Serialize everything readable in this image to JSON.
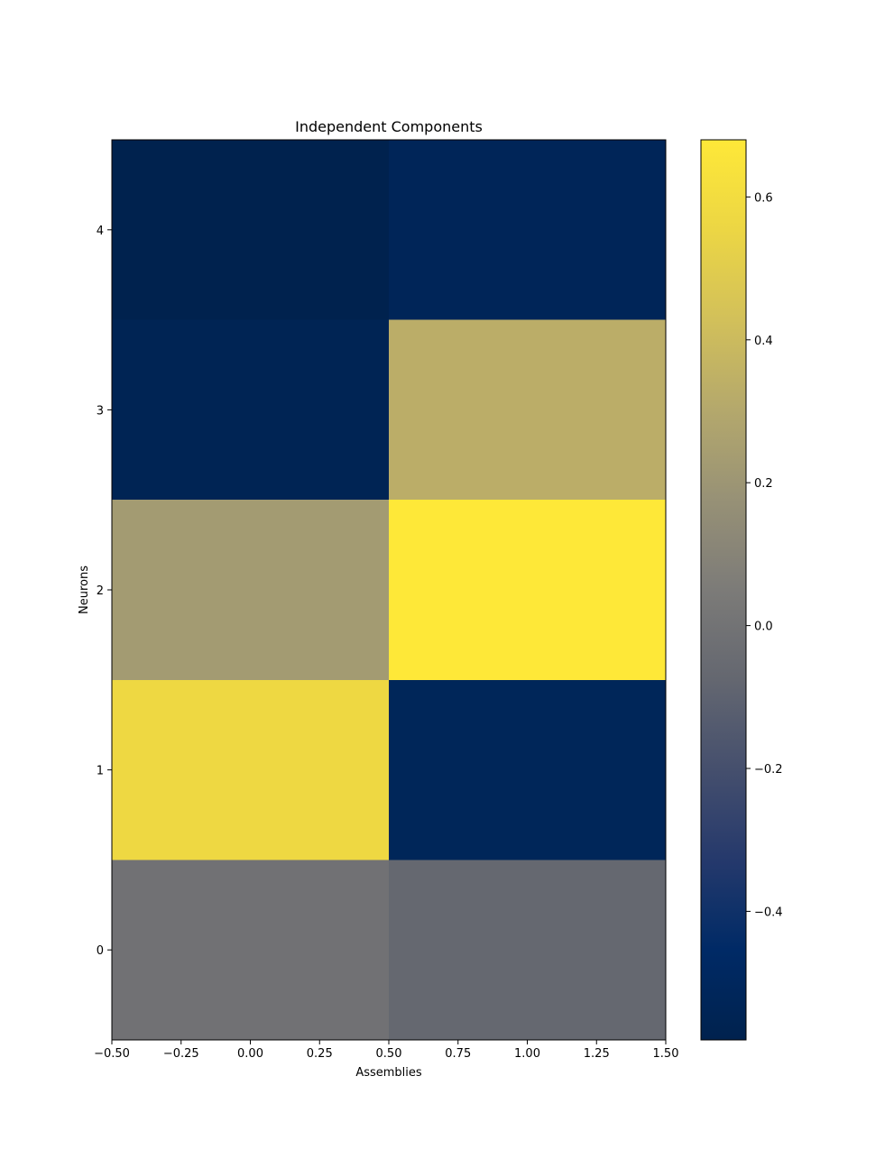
{
  "chart_data": {
    "type": "heatmap",
    "title": "Independent Components",
    "xlabel": "Assemblies",
    "ylabel": "Neurons",
    "colormap": "cividis",
    "x_columns": [
      0,
      1
    ],
    "y_rows": [
      0,
      1,
      2,
      3,
      4
    ],
    "xlim": [
      -0.5,
      1.5
    ],
    "ylim": [
      -0.5,
      4.5
    ],
    "x_ticks": [
      -0.5,
      -0.25,
      0.0,
      0.25,
      0.5,
      0.75,
      1.0,
      1.25,
      1.5
    ],
    "x_tick_labels": [
      "−0.50",
      "−0.25",
      "0.00",
      "0.25",
      "0.50",
      "0.75",
      "1.00",
      "1.25",
      "1.50"
    ],
    "y_ticks": [
      0,
      1,
      2,
      3,
      4
    ],
    "y_tick_labels": [
      "0",
      "1",
      "2",
      "3",
      "4"
    ],
    "values": [
      [
        -0.01,
        -0.07
      ],
      [
        0.57,
        -0.52
      ],
      [
        0.23,
        0.68
      ],
      [
        -0.55,
        0.33
      ],
      [
        -0.58,
        -0.53
      ]
    ],
    "colorbar": {
      "vmin": -0.58,
      "vmax": 0.68,
      "ticks": [
        -0.4,
        -0.2,
        0.0,
        0.2,
        0.4,
        0.6
      ],
      "tick_labels": [
        "−0.4",
        "−0.2",
        "0.0",
        "0.2",
        "0.4",
        "0.6"
      ]
    },
    "grid": false
  }
}
